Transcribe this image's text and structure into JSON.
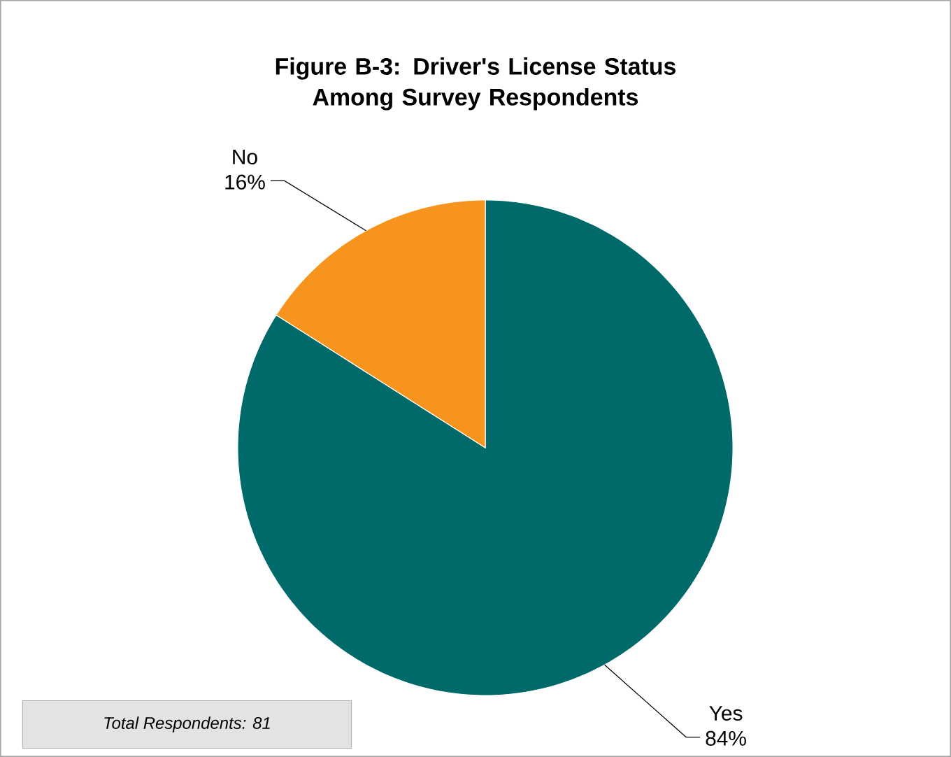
{
  "chart_data": {
    "type": "pie",
    "title": "Figure B-3: Driver's License Status Among Survey Respondents",
    "categories": [
      "Yes",
      "No"
    ],
    "values": [
      84,
      16
    ],
    "colors": [
      "#00696a",
      "#f7941d"
    ],
    "value_labels": [
      "84%",
      "16%"
    ],
    "annotations": [
      "Total Respondents: 81"
    ]
  }
}
